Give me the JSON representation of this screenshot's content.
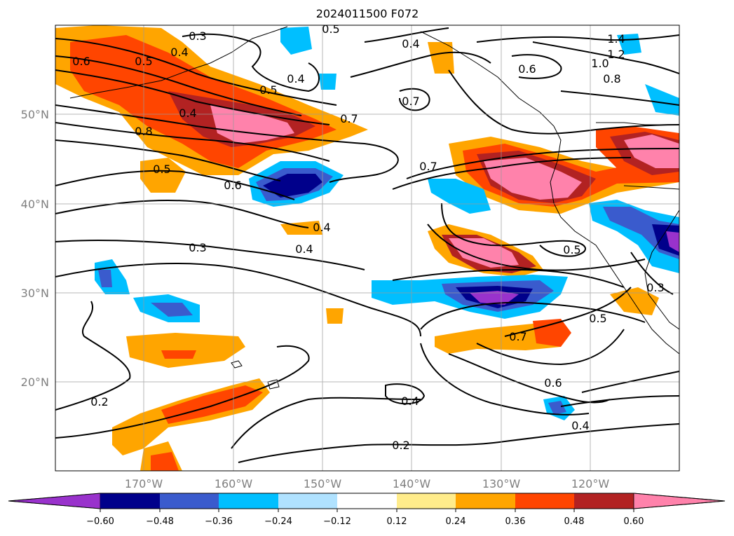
{
  "title": "2024011500 F072",
  "lat_labels": [
    "50°N",
    "40°N",
    "30°N",
    "20°N"
  ],
  "lon_labels": [
    "170°W",
    "160°W",
    "150°W",
    "140°W",
    "130°W",
    "120°W"
  ],
  "contour_labels": [
    "0.3",
    "0.5",
    "0.4",
    "0.6",
    "0.5",
    "0.4",
    "0.5",
    "0.4",
    "0.6",
    "0.7",
    "0.4",
    "1.4",
    "1.2",
    "1.0",
    "0.8",
    "0.8",
    "0.5",
    "0.6",
    "0.7",
    "0.7",
    "0.4",
    "0.3",
    "0.4",
    "0.5",
    "0.3",
    "0.2",
    "0.7",
    "0.5",
    "0.6",
    "0.4",
    "0.4",
    "0.2"
  ],
  "colorbar": {
    "colors": [
      "#9932cc",
      "#00008b",
      "#3a5bcd",
      "#00bfff",
      "#b0e2ff",
      "#ffffff",
      "#ffec8b",
      "#ffa500",
      "#ff4500",
      "#b22222",
      "#ff82ab"
    ],
    "tick_labels": [
      "−0.60",
      "−0.48",
      "−0.36",
      "−0.24",
      "−0.12",
      "0.12",
      "0.24",
      "0.36",
      "0.48",
      "0.60"
    ]
  }
}
